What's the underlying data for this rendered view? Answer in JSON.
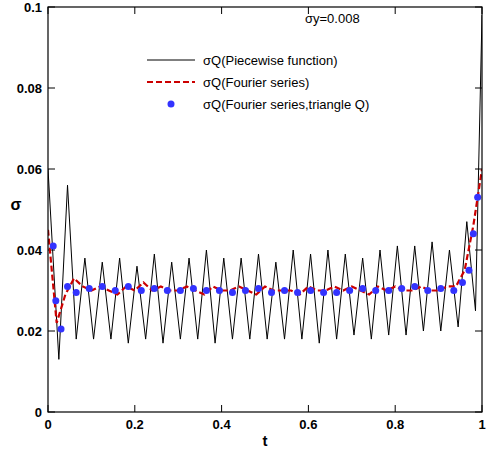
{
  "chart_data": {
    "type": "line",
    "x_label": "t",
    "y_label": "σ",
    "annotations": [
      "σy=0.008"
    ],
    "xlim": [
      0,
      1
    ],
    "xticks": [
      0,
      0.2,
      0.4,
      0.6,
      0.8,
      1
    ],
    "ylim": [
      0,
      0.1
    ],
    "yticks": [
      0,
      0.02,
      0.04,
      0.06,
      0.08,
      0.1
    ],
    "grid": false,
    "legend": "top",
    "series": [
      {
        "name": "σQ(Piecewise function)",
        "type": "line",
        "color": "#000000",
        "line_style": "solid",
        "x": [
          0,
          0.025,
          0.045,
          0.065,
          0.085,
          0.105,
          0.125,
          0.145,
          0.165,
          0.185,
          0.205,
          0.225,
          0.245,
          0.265,
          0.285,
          0.305,
          0.325,
          0.345,
          0.365,
          0.385,
          0.405,
          0.425,
          0.445,
          0.465,
          0.485,
          0.505,
          0.525,
          0.545,
          0.565,
          0.585,
          0.605,
          0.625,
          0.645,
          0.665,
          0.685,
          0.705,
          0.725,
          0.745,
          0.765,
          0.785,
          0.805,
          0.825,
          0.845,
          0.865,
          0.885,
          0.905,
          0.925,
          0.945,
          0.965,
          0.985,
          1
        ],
        "values": [
          0.06,
          0.013,
          0.056,
          0.018,
          0.038,
          0.018,
          0.037,
          0.018,
          0.038,
          0.017,
          0.036,
          0.018,
          0.039,
          0.017,
          0.037,
          0.018,
          0.038,
          0.018,
          0.04,
          0.017,
          0.038,
          0.018,
          0.038,
          0.018,
          0.039,
          0.018,
          0.037,
          0.018,
          0.04,
          0.018,
          0.039,
          0.017,
          0.04,
          0.018,
          0.039,
          0.019,
          0.038,
          0.018,
          0.04,
          0.019,
          0.041,
          0.019,
          0.041,
          0.02,
          0.042,
          0.02,
          0.04,
          0.021,
          0.047,
          0.025,
          0.098
        ]
      },
      {
        "name": "σQ(Fourier series)",
        "type": "line",
        "color": "#cc0000",
        "line_style": "dashed",
        "x": [
          0,
          0.02,
          0.04,
          0.06,
          0.08,
          0.1,
          0.12,
          0.14,
          0.16,
          0.18,
          0.2,
          0.22,
          0.24,
          0.26,
          0.28,
          0.3,
          0.32,
          0.34,
          0.36,
          0.38,
          0.4,
          0.42,
          0.44,
          0.46,
          0.48,
          0.5,
          0.52,
          0.54,
          0.56,
          0.58,
          0.6,
          0.62,
          0.64,
          0.66,
          0.68,
          0.7,
          0.72,
          0.74,
          0.76,
          0.78,
          0.8,
          0.82,
          0.84,
          0.86,
          0.88,
          0.9,
          0.92,
          0.94,
          0.96,
          0.98,
          1
        ],
        "values": [
          0.045,
          0.022,
          0.029,
          0.033,
          0.031,
          0.03,
          0.031,
          0.03,
          0.029,
          0.031,
          0.03,
          0.032,
          0.03,
          0.031,
          0.03,
          0.03,
          0.031,
          0.03,
          0.029,
          0.031,
          0.03,
          0.03,
          0.031,
          0.03,
          0.029,
          0.031,
          0.03,
          0.03,
          0.03,
          0.029,
          0.031,
          0.03,
          0.03,
          0.031,
          0.03,
          0.031,
          0.03,
          0.029,
          0.031,
          0.03,
          0.031,
          0.03,
          0.03,
          0.031,
          0.03,
          0.03,
          0.031,
          0.031,
          0.035,
          0.046,
          0.06
        ]
      },
      {
        "name": "σQ(Fourier series,triangle Q)",
        "type": "scatter",
        "color": "#3333ff",
        "marker": "circle",
        "x": [
          0.012,
          0.018,
          0.03,
          0.045,
          0.065,
          0.095,
          0.125,
          0.155,
          0.185,
          0.215,
          0.245,
          0.275,
          0.305,
          0.335,
          0.365,
          0.395,
          0.425,
          0.455,
          0.485,
          0.515,
          0.545,
          0.575,
          0.605,
          0.635,
          0.665,
          0.695,
          0.725,
          0.755,
          0.785,
          0.815,
          0.845,
          0.875,
          0.905,
          0.935,
          0.955,
          0.97,
          0.98,
          0.99
        ],
        "values": [
          0.041,
          0.0275,
          0.0205,
          0.031,
          0.0295,
          0.0305,
          0.031,
          0.03,
          0.031,
          0.03,
          0.0305,
          0.03,
          0.03,
          0.0305,
          0.03,
          0.03,
          0.0295,
          0.03,
          0.0305,
          0.0295,
          0.03,
          0.0295,
          0.03,
          0.0295,
          0.0295,
          0.03,
          0.0305,
          0.03,
          0.03,
          0.0305,
          0.031,
          0.03,
          0.0305,
          0.03,
          0.032,
          0.035,
          0.044,
          0.053
        ]
      }
    ]
  }
}
